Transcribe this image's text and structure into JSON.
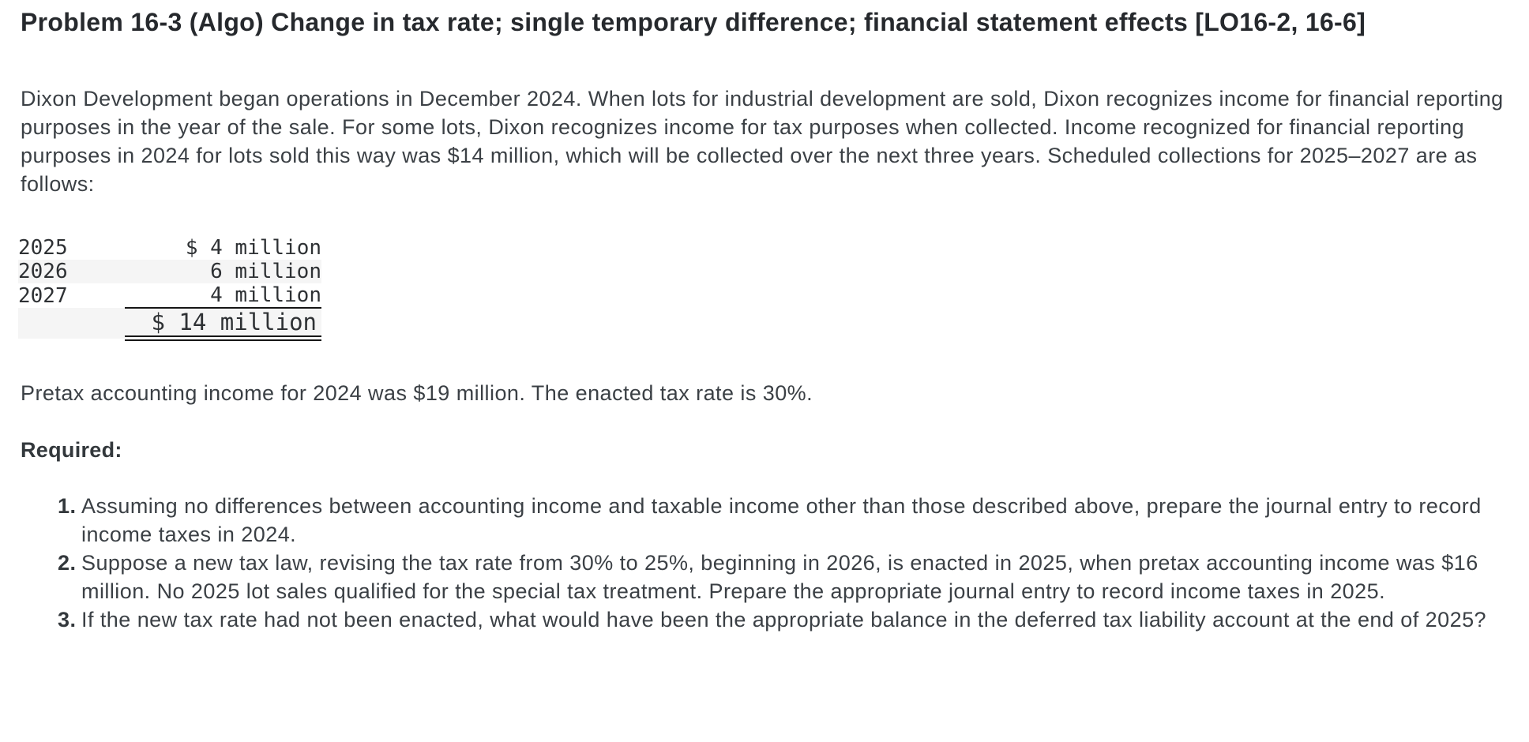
{
  "problem": {
    "title": "Problem 16-3 (Algo) Change in tax rate; single temporary difference; financial statement effects [LO16-2, 16-6]",
    "intro": "Dixon Development began operations in December 2024. When lots for industrial development are sold, Dixon recognizes income for financial reporting purposes in the year of the sale. For some lots, Dixon recognizes income for tax purposes when collected. Income recognized for financial reporting purposes in 2024 for lots sold this way was $14 million, which will be collected over the next three years. Scheduled collections for 2025–2027 are as follows:",
    "collections_table": {
      "rows": [
        {
          "year": "2025",
          "amount": "$ 4 million"
        },
        {
          "year": "2026",
          "amount": "6 million"
        },
        {
          "year": "2027",
          "amount": "4 million"
        }
      ],
      "total": {
        "amount": "$ 14 million"
      },
      "stripe_color": "#f5f5f5",
      "rule_color": "#161616"
    },
    "pretax_note": "Pretax accounting income for 2024 was $19 million. The enacted tax rate is 30%.",
    "required_label": "Required:",
    "requirements": [
      {
        "number": "1.",
        "text": "Assuming no differences between accounting income and taxable income other than those described above, prepare the journal entry to record income taxes in 2024."
      },
      {
        "number": "2.",
        "text": "Suppose a new tax law, revising the tax rate from 30% to 25%, beginning in 2026, is enacted in 2025, when pretax accounting income was $16 million. No 2025 lot sales qualified for the special tax treatment. Prepare the appropriate journal entry to record income taxes in 2025."
      },
      {
        "number": "3.",
        "text": "If the new tax rate had not been enacted, what would have been the appropriate balance in the deferred tax liability account at the end of 2025?"
      }
    ]
  }
}
